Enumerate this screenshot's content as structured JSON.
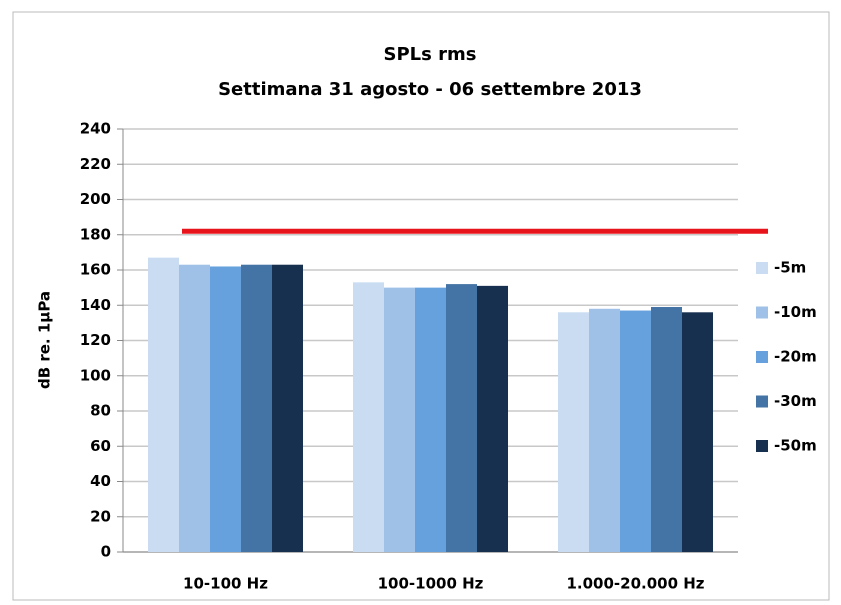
{
  "chart_data": {
    "type": "bar",
    "title": "SPLs rms",
    "subtitle": "Settimana 31 agosto - 06 settembre 2013",
    "ylabel": "dB re. 1µPa",
    "categories": [
      "10-100 Hz",
      "100-1000 Hz",
      "1.000-20.000 Hz"
    ],
    "series": [
      {
        "name": "-5m",
        "color": "#c9dcf2",
        "values": [
          167,
          153,
          136
        ]
      },
      {
        "name": "-10m",
        "color": "#9fc1e7",
        "values": [
          163,
          150,
          138
        ]
      },
      {
        "name": "-20m",
        "color": "#66a1dd",
        "values": [
          162,
          150,
          137
        ]
      },
      {
        "name": "-30m",
        "color": "#4473a6",
        "values": [
          163,
          152,
          139
        ]
      },
      {
        "name": "-50m",
        "color": "#17304f",
        "values": [
          163,
          151,
          136
        ]
      }
    ],
    "reference_line": {
      "value": 182,
      "color": "#e8141b"
    },
    "ylim": [
      0,
      240
    ],
    "yticks": [
      0,
      20,
      40,
      60,
      80,
      100,
      120,
      140,
      160,
      180,
      200,
      220,
      240
    ],
    "grid": true,
    "legend": "right"
  }
}
